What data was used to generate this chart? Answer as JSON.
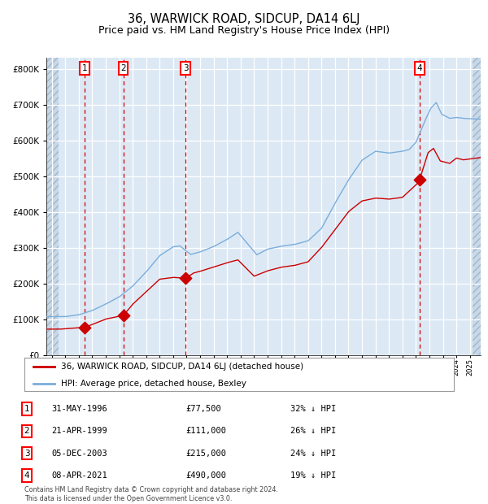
{
  "title": "36, WARWICK ROAD, SIDCUP, DA14 6LJ",
  "subtitle": "Price paid vs. HM Land Registry's House Price Index (HPI)",
  "footer": "Contains HM Land Registry data © Crown copyright and database right 2024.\nThis data is licensed under the Open Government Licence v3.0.",
  "legend_red": "36, WARWICK ROAD, SIDCUP, DA14 6LJ (detached house)",
  "legend_blue": "HPI: Average price, detached house, Bexley",
  "transactions": [
    {
      "num": 1,
      "date": "31-MAY-1996",
      "price": 77500,
      "pct": "32% ↓ HPI",
      "year": 1996.42
    },
    {
      "num": 2,
      "date": "21-APR-1999",
      "price": 111000,
      "pct": "26% ↓ HPI",
      "year": 1999.3
    },
    {
      "num": 3,
      "date": "05-DEC-2003",
      "price": 215000,
      "pct": "24% ↓ HPI",
      "year": 2003.92
    },
    {
      "num": 4,
      "date": "08-APR-2021",
      "price": 490000,
      "pct": "19% ↓ HPI",
      "year": 2021.27
    }
  ],
  "ylim": [
    0,
    830000
  ],
  "xlim_start": 1993.6,
  "xlim_end": 2025.8,
  "background_color": "#dce9f5",
  "hatch_color": "#c0d0e0",
  "grid_color": "#ffffff",
  "red_color": "#cc0000",
  "blue_color": "#7aaddb",
  "vline_color": "#cc0000",
  "title_fontsize": 10.5,
  "subtitle_fontsize": 9.0,
  "hpi_start": 1995.0,
  "red_start": 1994.5
}
